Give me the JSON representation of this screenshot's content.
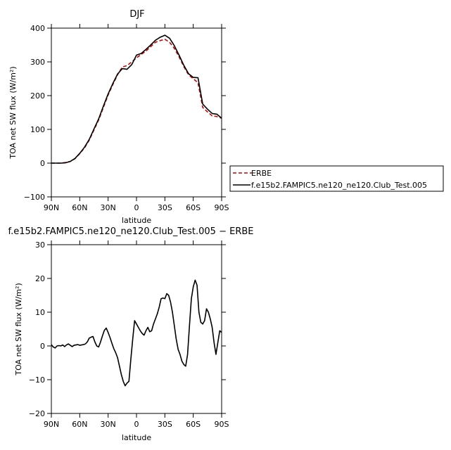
{
  "chart_data": [
    {
      "type": "line",
      "title": "DJF",
      "xlabel": "latitude",
      "ylabel": "TOA net SW flux (W/m²)",
      "xlim": [
        -90,
        90
      ],
      "ylim": [
        -100,
        400
      ],
      "xticks": [
        -90,
        -60,
        -30,
        0,
        30,
        60,
        90
      ],
      "xtick_labels": [
        "90N",
        "60N",
        "30N",
        "0",
        "30S",
        "60S",
        "90S"
      ],
      "yticks": [
        -100,
        0,
        100,
        200,
        300,
        400
      ],
      "ytick_labels": [
        "−100",
        "0",
        "100",
        "200",
        "300",
        "400"
      ],
      "legend_position": "right",
      "series": [
        {
          "name": "ERBE",
          "color": "#cc0000",
          "dash": "dashed",
          "x": [
            -90,
            -80,
            -75,
            -70,
            -65,
            -60,
            -55,
            -50,
            -45,
            -40,
            -35,
            -30,
            -25,
            -20,
            -15,
            -10,
            -5,
            0,
            5,
            10,
            15,
            20,
            25,
            30,
            35,
            40,
            45,
            50,
            55,
            60,
            65,
            70,
            75,
            80,
            85,
            90
          ],
          "y": [
            0,
            0,
            2,
            5,
            13,
            28,
            45,
            68,
            98,
            128,
            165,
            202,
            233,
            262,
            285,
            289,
            300,
            312,
            322,
            332,
            345,
            358,
            363,
            367,
            358,
            340,
            315,
            286,
            262,
            250,
            238,
            165,
            152,
            140,
            138,
            133
          ]
        },
        {
          "name": "f.e15b2.FAMPIC5.ne120_ne120.Club_Test.005",
          "color": "#000000",
          "dash": "solid",
          "x": [
            -90,
            -80,
            -75,
            -70,
            -65,
            -60,
            -55,
            -50,
            -45,
            -40,
            -35,
            -30,
            -25,
            -20,
            -15,
            -10,
            -5,
            0,
            5,
            10,
            15,
            20,
            25,
            30,
            35,
            40,
            45,
            50,
            55,
            60,
            65,
            70,
            75,
            80,
            85,
            90
          ],
          "y": [
            0,
            0,
            1,
            5,
            14,
            29,
            47,
            70,
            101,
            131,
            169,
            205,
            236,
            264,
            280,
            278,
            292,
            320,
            325,
            337,
            350,
            364,
            373,
            379,
            370,
            348,
            320,
            290,
            265,
            254,
            253,
            175,
            160,
            147,
            145,
            133
          ]
        }
      ]
    },
    {
      "type": "line",
      "title": "f.e15b2.FAMPIC5.ne120_ne120.Club_Test.005 − ERBE",
      "xlabel": "latitude",
      "ylabel": "TOA net SW flux (W/m²)",
      "xlim": [
        -90,
        90
      ],
      "ylim": [
        -20,
        30
      ],
      "xticks": [
        -90,
        -60,
        -30,
        0,
        30,
        60,
        90
      ],
      "xtick_labels": [
        "90N",
        "60N",
        "30N",
        "0",
        "30S",
        "60S",
        "90S"
      ],
      "yticks": [
        -20,
        -10,
        0,
        10,
        20,
        30
      ],
      "ytick_labels": [
        "−20",
        "−10",
        "0",
        "10",
        "20",
        "30"
      ],
      "series": [
        {
          "color": "#000000",
          "dash": "solid",
          "x": [
            -90,
            -88,
            -86,
            -84,
            -82,
            -80,
            -78,
            -76,
            -74,
            -72,
            -70,
            -68,
            -66,
            -64,
            -62,
            -60,
            -58,
            -56,
            -54,
            -52,
            -50,
            -48,
            -46,
            -44,
            -42,
            -40,
            -38,
            -36,
            -34,
            -32,
            -30,
            -28,
            -26,
            -24,
            -22,
            -20,
            -18,
            -16,
            -14,
            -12,
            -10,
            -8,
            -6,
            -4,
            -2,
            0,
            2,
            4,
            6,
            8,
            10,
            12,
            14,
            16,
            18,
            20,
            22,
            24,
            26,
            28,
            30,
            32,
            34,
            36,
            38,
            40,
            42,
            44,
            46,
            48,
            50,
            52,
            54,
            56,
            58,
            60,
            62,
            64,
            66,
            68,
            70,
            72,
            74,
            76,
            78,
            80,
            82,
            84,
            86,
            88,
            90
          ],
          "y": [
            0.4,
            -0.3,
            -0.6,
            0,
            0.1,
            0,
            0.3,
            -0.2,
            0.3,
            0.6,
            0.2,
            -0.2,
            0.2,
            0.3,
            0.4,
            0.2,
            0.3,
            0.4,
            0.6,
            1.2,
            2.3,
            2.6,
            2.8,
            1.2,
            0,
            -0.3,
            1.2,
            3,
            4.6,
            5.3,
            4,
            2.5,
            0.8,
            -0.8,
            -2,
            -3.5,
            -6,
            -8.5,
            -10.5,
            -11.8,
            -11,
            -10.5,
            -4,
            2,
            7.5,
            6.5,
            5.5,
            4.5,
            3.7,
            3.2,
            4.5,
            5.5,
            4.2,
            4.5,
            6.5,
            8,
            9.5,
            11.5,
            14,
            14.2,
            14,
            15.5,
            15,
            13,
            10,
            6,
            2,
            -1,
            -2.5,
            -4.5,
            -5.5,
            -6,
            -2.5,
            6,
            14,
            17.5,
            19.5,
            18,
            10,
            7,
            6.5,
            7.5,
            11,
            10,
            8,
            5.5,
            1,
            -2.5,
            1,
            4.5,
            4
          ]
        }
      ]
    }
  ]
}
